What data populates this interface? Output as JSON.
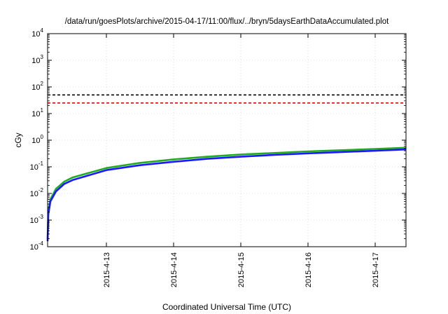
{
  "chart_data": {
    "type": "line",
    "title": "/data/run/goesPlots/archive/2015-04-17/11:00/flux/../bryn/5daysEarthDataAccumulated.plot",
    "xlabel": "Coordinated Universal Time (UTC)",
    "ylabel": "cGy",
    "y_scale": "log",
    "ylim": [
      0.0001,
      10000
    ],
    "xlim": [
      "2015-04-12T03:00",
      "2015-04-17T11:00"
    ],
    "y_tick_base": "10",
    "y_tick_exponents": [
      "-4",
      "-3",
      "-2",
      "-1",
      "0",
      "1",
      "2",
      "3",
      "4"
    ],
    "x_ticks": [
      "2015-4-13",
      "2015-4-14",
      "2015-4-15",
      "2015-4-16",
      "2015-4-17"
    ],
    "grid": true,
    "legend": "none",
    "series": [
      {
        "color": "#22aa22",
        "x": [
          "2015-04-12T03:00",
          "2015-04-12T03:15",
          "2015-04-12T04:00",
          "2015-04-12T06:00",
          "2015-04-12T09:00",
          "2015-04-12T12:00",
          "2015-04-13T00:00",
          "2015-04-13T12:00",
          "2015-04-14T00:00",
          "2015-04-14T12:00",
          "2015-04-15T00:00",
          "2015-04-15T12:00",
          "2015-04-16T00:00",
          "2015-04-16T12:00",
          "2015-04-17T00:00",
          "2015-04-17T11:00"
        ],
        "values": [
          0.0002,
          0.002,
          0.006,
          0.015,
          0.028,
          0.04,
          0.09,
          0.14,
          0.19,
          0.24,
          0.29,
          0.33,
          0.38,
          0.42,
          0.47,
          0.52
        ]
      },
      {
        "color": "#1a1aff",
        "x": [
          "2015-04-12T03:00",
          "2015-04-12T03:15",
          "2015-04-12T04:00",
          "2015-04-12T06:00",
          "2015-04-12T09:00",
          "2015-04-12T12:00",
          "2015-04-13T00:00",
          "2015-04-13T12:00",
          "2015-04-14T00:00",
          "2015-04-14T12:00",
          "2015-04-15T00:00",
          "2015-04-15T12:00",
          "2015-04-16T00:00",
          "2015-04-16T12:00",
          "2015-04-17T00:00",
          "2015-04-17T11:00"
        ],
        "values": [
          0.00016,
          0.0016,
          0.005,
          0.012,
          0.023,
          0.032,
          0.075,
          0.115,
          0.155,
          0.2,
          0.24,
          0.28,
          0.32,
          0.36,
          0.4,
          0.45
        ]
      },
      {
        "color": "#000000",
        "style": "dashed",
        "x": [
          "2015-04-12T03:00",
          "2015-04-17T11:00"
        ],
        "values": [
          50,
          50
        ]
      },
      {
        "color": "#ee0000",
        "style": "dashed",
        "x": [
          "2015-04-12T03:00",
          "2015-04-17T11:00"
        ],
        "values": [
          25,
          25
        ]
      }
    ]
  }
}
